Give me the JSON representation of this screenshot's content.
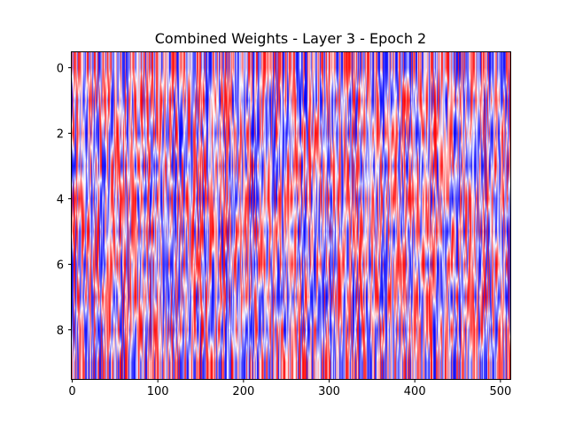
{
  "chart_data": {
    "type": "heatmap",
    "title": "Combined Weights - Layer 3 - Epoch 2",
    "xlabel": "",
    "ylabel": "",
    "rows": 10,
    "columns": 512,
    "xlim": [
      -0.5,
      511.5
    ],
    "ylim": [
      9.5,
      -0.5
    ],
    "x_ticks": [
      0,
      100,
      200,
      300,
      400,
      500
    ],
    "y_ticks": [
      0,
      2,
      4,
      6,
      8
    ],
    "colormap": [
      "#0000ff",
      "#ffffff",
      "#ff0000"
    ],
    "value_range": [
      -1,
      1
    ],
    "interpolation": "smooth",
    "grid": false,
    "legend": "none",
    "values_note": "dense random-like weights; per-cell values are not individually readable"
  }
}
